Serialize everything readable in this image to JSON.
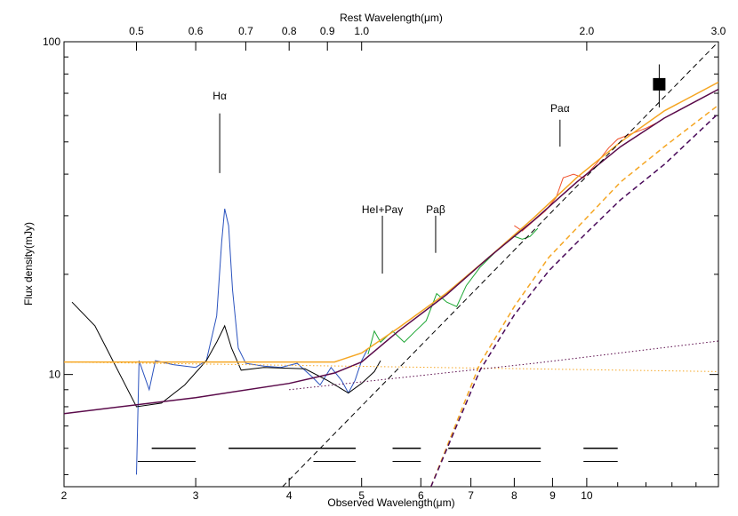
{
  "chart_data": {
    "type": "line",
    "xlabel": "Observed Wavelength(μm)",
    "ylabel": "Flux density(mJy)",
    "x2label": "Rest Wavelength(μm)",
    "xscale": "log",
    "yscale": "log",
    "xlim": [
      2,
      15
    ],
    "ylim": [
      4.6,
      100
    ],
    "x2lim": [
      0.4,
      3.0
    ],
    "xticks": [
      2,
      3,
      4,
      5,
      6,
      7,
      8,
      9,
      10
    ],
    "xminor": [
      11,
      12,
      13,
      14
    ],
    "yticks": [
      10,
      100
    ],
    "yminor": [
      5,
      6,
      7,
      8,
      9,
      20,
      30,
      40,
      50,
      60,
      70,
      80,
      90
    ],
    "x2ticks": [
      0.5,
      0.6,
      0.7,
      0.8,
      0.9,
      {
        "value": 1,
        "label": "1.0"
      },
      {
        "value": 2,
        "label": "2.0"
      },
      {
        "value": 3,
        "label": "3.0"
      }
    ],
    "series": [
      {
        "color": "#2a52be",
        "dash": "solid",
        "width": 1,
        "x": [
          2.5,
          2.52,
          2.6,
          2.65,
          2.8,
          3.0,
          3.1,
          3.2,
          3.25,
          3.28,
          3.32,
          3.36,
          3.42,
          3.5,
          3.7,
          3.9,
          4.1,
          4.3,
          4.4,
          4.55,
          4.7,
          4.8,
          4.9,
          5.0,
          5.1
        ],
        "values": [
          5.0,
          11,
          9,
          11,
          10.7,
          10.5,
          11,
          15,
          25,
          31.5,
          28,
          18,
          12,
          10.8,
          10.6,
          10.5,
          10.8,
          9.8,
          9.3,
          10.5,
          9.6,
          8.8,
          9.6,
          11,
          12
        ]
      },
      {
        "color": "#000000",
        "dash": "solid",
        "width": 1,
        "x": [
          2.05,
          2.2,
          2.5,
          2.7,
          2.9,
          3.1,
          3.2,
          3.28,
          3.35,
          3.45,
          3.7,
          4.2,
          4.5,
          4.8,
          5.0,
          5.2,
          5.3
        ],
        "values": [
          16.5,
          14,
          8,
          8.2,
          9.3,
          11,
          12.5,
          14,
          12,
          10.3,
          10.5,
          10.4,
          9.6,
          8.8,
          9.4,
          10.2,
          11
        ]
      },
      {
        "color": "#1aa531",
        "dash": "solid",
        "width": 1,
        "x": [
          5.1,
          5.2,
          5.3,
          5.5,
          5.7,
          5.9,
          6.1,
          6.3,
          6.5,
          6.7,
          6.9,
          7.2,
          7.5,
          7.8,
          8.0,
          8.2,
          8.4,
          8.6
        ],
        "values": [
          11.5,
          13.5,
          12.5,
          13.5,
          12.5,
          13.5,
          14.5,
          17.5,
          16.5,
          16,
          18.5,
          21,
          23,
          25,
          26,
          25.5,
          26,
          27.5
        ]
      },
      {
        "color": "#f0502a",
        "dash": "solid",
        "width": 1,
        "x": [
          8.0,
          8.2,
          8.5,
          8.8,
          9.1,
          9.3,
          9.6,
          9.9,
          10.3,
          10.7,
          11.0,
          11.5,
          12.0,
          12.4
        ],
        "values": [
          28,
          27,
          29,
          31,
          34,
          39,
          40,
          39,
          43,
          48,
          51,
          53,
          55,
          57
        ]
      },
      {
        "color": "#f5a623",
        "dash": "solid",
        "width": 1.5,
        "x": [
          2,
          4.6,
          5,
          5.6,
          6.5,
          7.4,
          8.5,
          9.7,
          11.1,
          12.7,
          15
        ],
        "values": [
          10.9,
          10.9,
          11.6,
          13.8,
          17.6,
          22.5,
          29.6,
          39.1,
          50,
          62,
          75.6
        ]
      },
      {
        "color": "#5a0a4a",
        "dash": "solid",
        "width": 1.5,
        "x": [
          2,
          3,
          4,
          4.6,
          5,
          5.6,
          6.5,
          7.4,
          8.5,
          9.7,
          11.1,
          12.7,
          15
        ],
        "values": [
          7.63,
          8.52,
          9.4,
          10.1,
          10.9,
          13.5,
          17.4,
          22.5,
          29.1,
          37.9,
          48.4,
          59,
          72
        ]
      },
      {
        "color": "#f5a623",
        "dash": "dotted",
        "width": 1,
        "x": [
          2,
          15
        ],
        "values": [
          10.9,
          10.2
        ]
      },
      {
        "color": "#5a0a4a",
        "dash": "dotted",
        "width": 1,
        "x": [
          4,
          5,
          8.5,
          15
        ],
        "values": [
          9.0,
          9.5,
          10.8,
          12.6
        ]
      },
      {
        "color": "#000000",
        "dash": "dashed",
        "width": 1,
        "x": [
          3.92,
          15
        ],
        "values": [
          4.6,
          100
        ]
      },
      {
        "color": "#f5a623",
        "dash": "dashed",
        "width": 1.5,
        "x": [
          6.19,
          7.2,
          8.0,
          8.9,
          10,
          11.1,
          12.7,
          15
        ],
        "values": [
          4.6,
          10.8,
          16.0,
          22.5,
          29.6,
          37.9,
          48.4,
          64.5
        ]
      },
      {
        "color": "#4a0a5a",
        "dash": "dashed",
        "width": 1.5,
        "x": [
          6.19,
          7.2,
          8.0,
          8.9,
          10,
          11.1,
          12.7,
          15
        ],
        "values": [
          4.6,
          10.3,
          15.1,
          20.5,
          26.7,
          33.5,
          42.8,
          60.9
        ]
      },
      {
        "color": "#000000",
        "marker": "square",
        "x": [
          12.5
        ],
        "values": [
          74.5
        ],
        "errors": [
          11
        ]
      }
    ],
    "bands": [
      {
        "y": 6.0,
        "x0": 2.62,
        "x1": 3.0
      },
      {
        "y": 6.0,
        "x0": 3.32,
        "x1": 4.91
      },
      {
        "y": 6.0,
        "x0": 5.5,
        "x1": 6.0
      },
      {
        "y": 6.0,
        "x0": 6.53,
        "x1": 8.68
      },
      {
        "y": 6.0,
        "x0": 9.9,
        "x1": 11.0
      },
      {
        "y": 5.48,
        "x0": 2.51,
        "x1": 3.0
      },
      {
        "y": 5.48,
        "x0": 4.31,
        "x1": 4.91
      },
      {
        "y": 5.48,
        "x0": 5.5,
        "x1": 6.0
      },
      {
        "y": 5.48,
        "x0": 6.53,
        "x1": 8.68
      },
      {
        "y": 5.48,
        "x0": 9.9,
        "x1": 11.0
      }
    ],
    "annotations": [
      {
        "text": "Hα",
        "x": 3.23,
        "y": 68.7,
        "tick": [
          60.9,
          40.3
        ]
      },
      {
        "text": "HeI+Paγ",
        "x": 5.33,
        "y": 31.3,
        "tick": [
          30.0,
          20.1
        ]
      },
      {
        "text": "Paβ",
        "x": 6.28,
        "y": 31.3,
        "tick": [
          30.0,
          23.2
        ]
      },
      {
        "text": "Paα",
        "x": 9.21,
        "y": 63.1,
        "tick": [
          58.3,
          48.4
        ]
      }
    ]
  }
}
